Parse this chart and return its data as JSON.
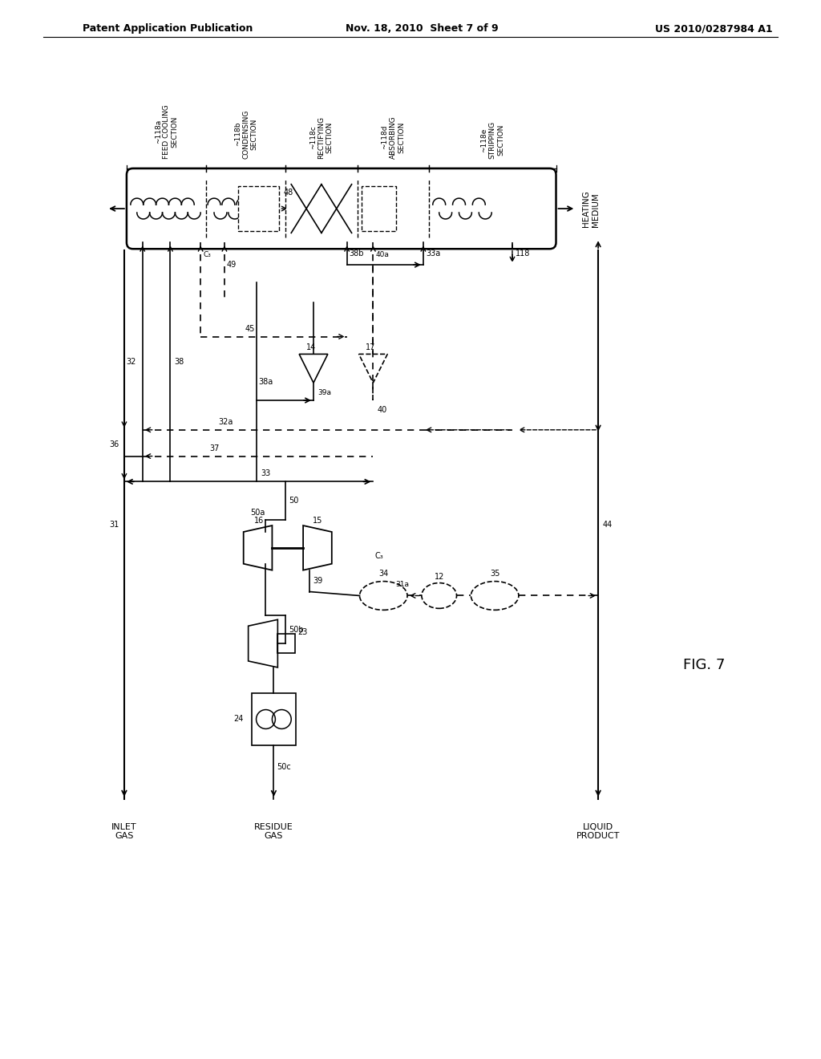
{
  "title_left": "Patent Application Publication",
  "title_center": "Nov. 18, 2010  Sheet 7 of 9",
  "title_right": "US 2010/0287984 A1",
  "fig_label": "FIG. 7",
  "bg_color": "#ffffff"
}
